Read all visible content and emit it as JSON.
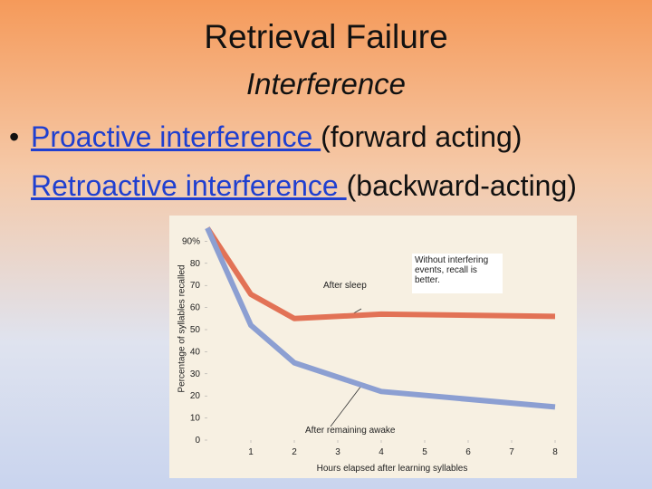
{
  "title": "Retrieval Failure",
  "subtitle": "Interference",
  "bullets": [
    {
      "link": "Proactive interference ",
      "text": "(forward acting)"
    },
    {
      "link": "Retroactive interference ",
      "text": "(backward-acting)"
    }
  ],
  "chart_data": {
    "type": "line",
    "y_label": "Percentage of syllables recalled",
    "x_label": "Hours elapsed after learning syllables",
    "x": [
      0,
      1,
      2,
      4,
      8
    ],
    "series": [
      {
        "name": "After sleep",
        "color": "#e27256",
        "values": [
          96,
          66,
          55,
          57,
          56
        ]
      },
      {
        "name": "After remaining awake",
        "color": "#8c9fd2",
        "values": [
          96,
          52,
          35,
          22,
          15
        ]
      }
    ],
    "xlim": [
      0,
      8.5
    ],
    "xticks": [
      1,
      2,
      3,
      4,
      5,
      6,
      7,
      8
    ],
    "ylim": [
      0,
      100
    ],
    "yticks": [
      0,
      10,
      20,
      30,
      40,
      50,
      60,
      70,
      80,
      {
        "value": 90,
        "label": "90%"
      }
    ],
    "annotations": [
      "Without interfering events, recall is better."
    ]
  }
}
